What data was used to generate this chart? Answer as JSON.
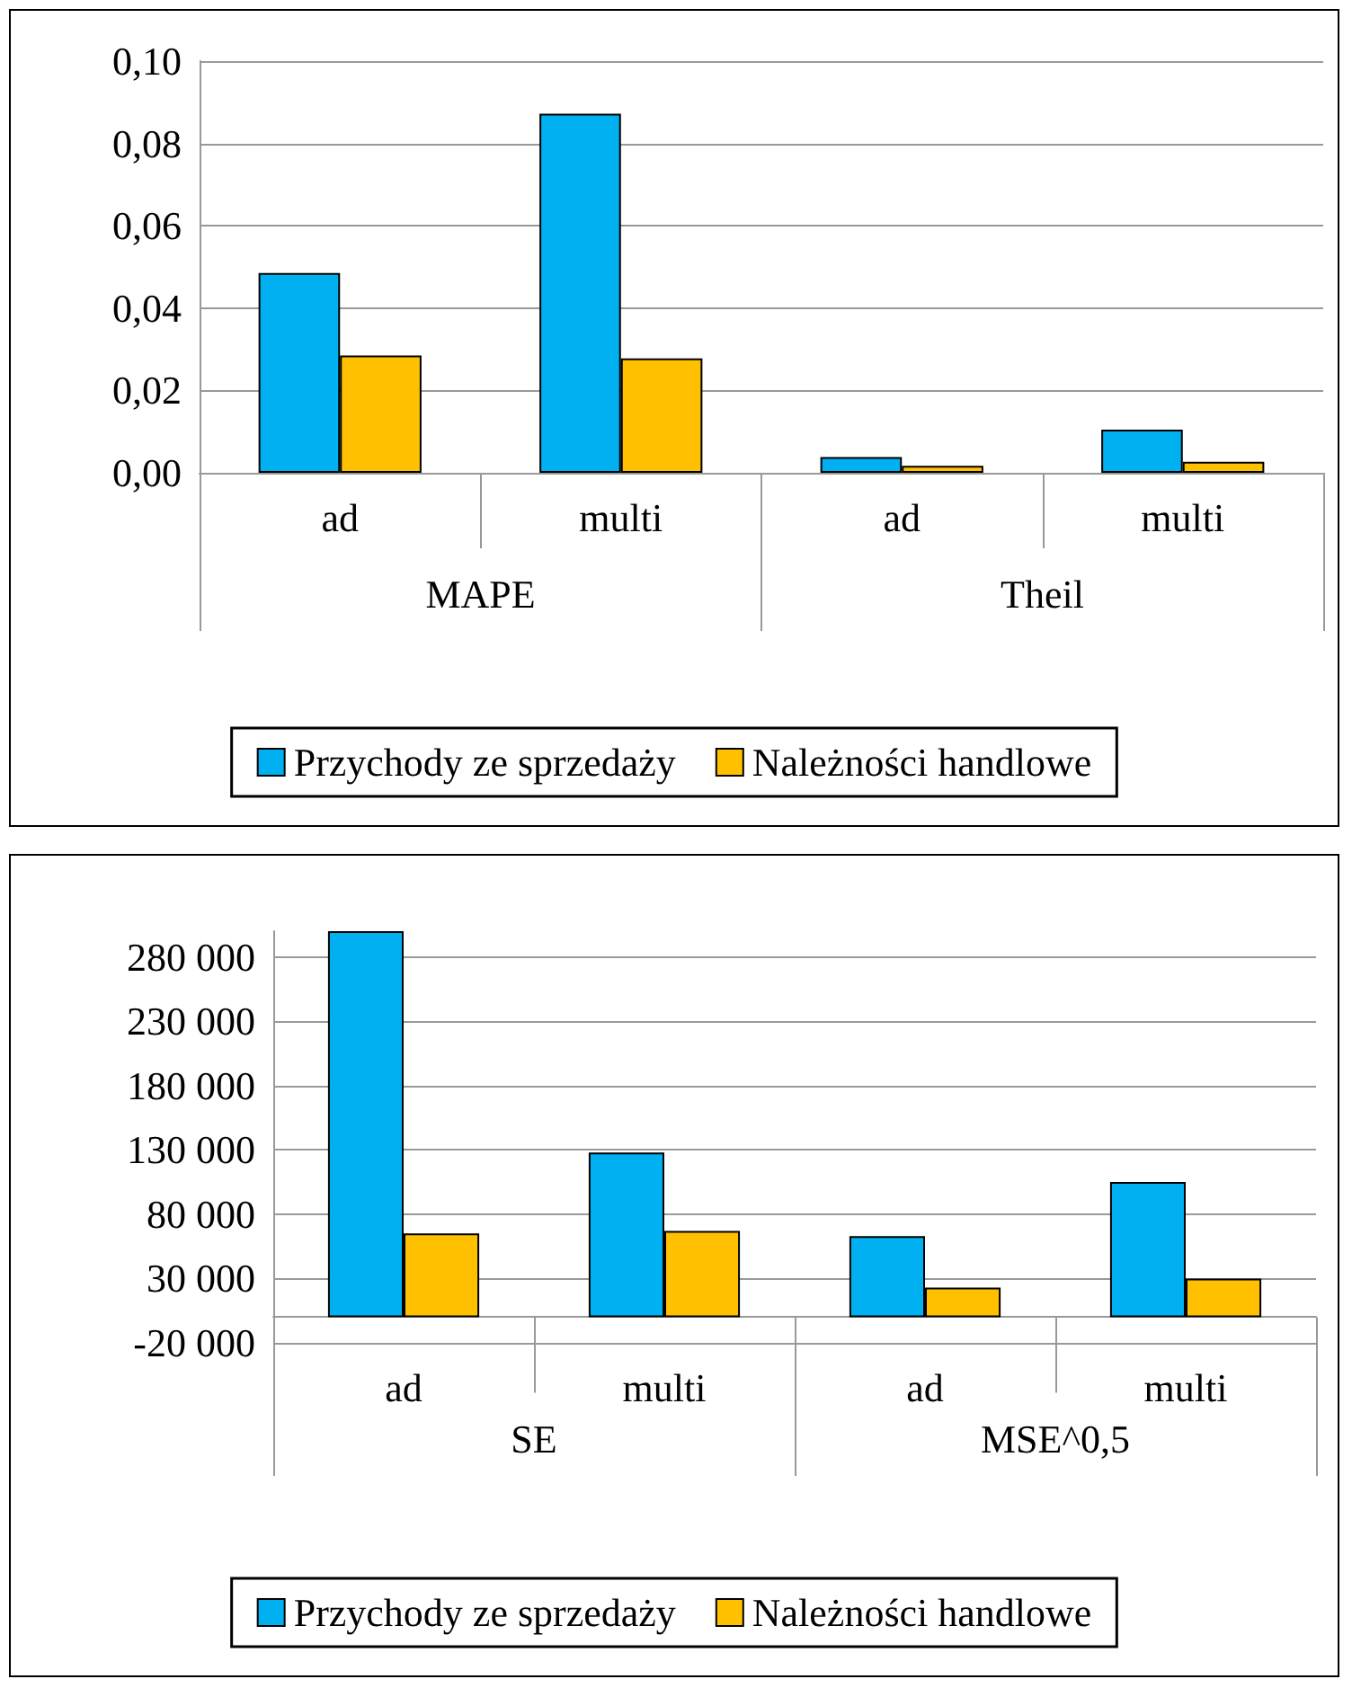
{
  "chart_data": [
    {
      "type": "bar",
      "categories": [
        "ad",
        "multi",
        "ad",
        "multi"
      ],
      "annotations": [
        "MAPE",
        "Theil"
      ],
      "series": [
        {
          "name": "Przychody ze sprzedaży",
          "color": "#00b0f0",
          "values": [
            0.0485,
            0.0872,
            0.0038,
            0.0105
          ]
        },
        {
          "name": "Należności handlowe",
          "color": "#ffc000",
          "values": [
            0.0285,
            0.0278,
            0.0017,
            0.0027
          ]
        }
      ],
      "ylim": [
        0,
        0.1
      ],
      "yticks": [
        {
          "value": 0,
          "label": "0,00"
        },
        {
          "value": 0.02,
          "label": "0,02"
        },
        {
          "value": 0.04,
          "label": "0,04"
        },
        {
          "value": 0.06,
          "label": "0,06"
        },
        {
          "value": 0.08,
          "label": "0,08"
        },
        {
          "value": 0.1,
          "label": "0,10"
        }
      ],
      "grid": "y",
      "legend": "bottom"
    },
    {
      "type": "bar",
      "categories": [
        "ad",
        "multi",
        "ad",
        "multi"
      ],
      "annotations": [
        "SE",
        "MSE^0,5"
      ],
      "series": [
        {
          "name": "Przychody ze sprzedaży",
          "color": "#00b0f0",
          "values": [
            300000,
            128000,
            63000,
            105000
          ]
        },
        {
          "name": "Należności handlowe",
          "color": "#ffc000",
          "values": [
            65000,
            67000,
            23000,
            30000
          ]
        }
      ],
      "ylim": [
        -20000,
        300000
      ],
      "yticks": [
        {
          "value": -20000,
          "label": "-20 000"
        },
        {
          "value": 30000,
          "label": "30 000"
        },
        {
          "value": 80000,
          "label": "80 000"
        },
        {
          "value": 130000,
          "label": "130 000"
        },
        {
          "value": 180000,
          "label": "180 000"
        },
        {
          "value": 230000,
          "label": "230 000"
        },
        {
          "value": 280000,
          "label": "280 000"
        }
      ],
      "grid": "y",
      "legend": "bottom"
    }
  ]
}
